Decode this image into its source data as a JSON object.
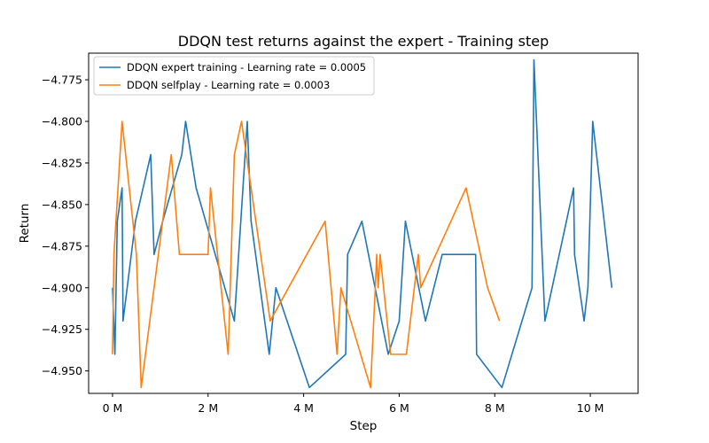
{
  "chart_data": {
    "type": "line",
    "title": "DDQN test returns against the expert - Training step",
    "xlabel": "Step",
    "ylabel": "Return",
    "xlim": [
      -0.5,
      11.0
    ],
    "ylim": [
      -4.9635,
      -4.759
    ],
    "x_unit": "M",
    "x_ticks": [
      0,
      2,
      4,
      6,
      8,
      10
    ],
    "x_tick_labels": [
      "0 M",
      "2 M",
      "4 M",
      "6 M",
      "8 M",
      "10 M"
    ],
    "y_ticks": [
      -4.775,
      -4.8,
      -4.825,
      -4.85,
      -4.875,
      -4.9,
      -4.925,
      -4.95
    ],
    "y_tick_labels": [
      "−4.775",
      "−4.800",
      "−4.825",
      "−4.850",
      "−4.875",
      "−4.900",
      "−4.925",
      "−4.950"
    ],
    "grid": false,
    "legend_position": "top-left",
    "series": [
      {
        "name": "DDQN expert training - Learning rate = 0.0005",
        "color": "#1f77b4",
        "points": [
          [
            0.0,
            -4.9
          ],
          [
            0.05,
            -4.94
          ],
          [
            0.1,
            -4.86
          ],
          [
            0.2,
            -4.84
          ],
          [
            0.22,
            -4.92
          ],
          [
            0.48,
            -4.86
          ],
          [
            0.8,
            -4.82
          ],
          [
            0.87,
            -4.88
          ],
          [
            1.05,
            -4.86
          ],
          [
            1.45,
            -4.82
          ],
          [
            1.53,
            -4.8
          ],
          [
            1.75,
            -4.84
          ],
          [
            2.55,
            -4.92
          ],
          [
            2.82,
            -4.8
          ],
          [
            2.9,
            -4.86
          ],
          [
            3.28,
            -4.94
          ],
          [
            3.42,
            -4.9
          ],
          [
            4.12,
            -4.96
          ],
          [
            4.88,
            -4.94
          ],
          [
            4.92,
            -4.88
          ],
          [
            5.22,
            -4.86
          ],
          [
            5.77,
            -4.94
          ],
          [
            6.0,
            -4.92
          ],
          [
            6.13,
            -4.86
          ],
          [
            6.55,
            -4.92
          ],
          [
            6.9,
            -4.88
          ],
          [
            7.6,
            -4.88
          ],
          [
            7.62,
            -4.94
          ],
          [
            8.15,
            -4.96
          ],
          [
            8.78,
            -4.9
          ],
          [
            8.82,
            -4.763
          ],
          [
            9.05,
            -4.92
          ],
          [
            9.65,
            -4.84
          ],
          [
            9.67,
            -4.88
          ],
          [
            9.87,
            -4.92
          ],
          [
            9.95,
            -4.9
          ],
          [
            10.05,
            -4.8
          ],
          [
            10.45,
            -4.9
          ]
        ]
      },
      {
        "name": "DDQN selfplay - Learning rate = 0.0003",
        "color": "#ff7f0e",
        "points": [
          [
            0.0,
            -4.94
          ],
          [
            0.03,
            -4.88
          ],
          [
            0.2,
            -4.8
          ],
          [
            0.5,
            -4.88
          ],
          [
            0.6,
            -4.96
          ],
          [
            1.23,
            -4.82
          ],
          [
            1.4,
            -4.88
          ],
          [
            2.0,
            -4.88
          ],
          [
            2.05,
            -4.84
          ],
          [
            2.42,
            -4.94
          ],
          [
            2.55,
            -4.82
          ],
          [
            2.7,
            -4.8
          ],
          [
            3.3,
            -4.92
          ],
          [
            4.45,
            -4.86
          ],
          [
            4.7,
            -4.94
          ],
          [
            4.78,
            -4.9
          ],
          [
            5.4,
            -4.96
          ],
          [
            5.5,
            -4.9
          ],
          [
            5.53,
            -4.88
          ],
          [
            5.56,
            -4.9
          ],
          [
            5.6,
            -4.88
          ],
          [
            5.82,
            -4.94
          ],
          [
            6.15,
            -4.94
          ],
          [
            6.4,
            -4.88
          ],
          [
            6.45,
            -4.9
          ],
          [
            7.4,
            -4.84
          ],
          [
            7.85,
            -4.9
          ],
          [
            8.1,
            -4.92
          ]
        ]
      }
    ]
  }
}
